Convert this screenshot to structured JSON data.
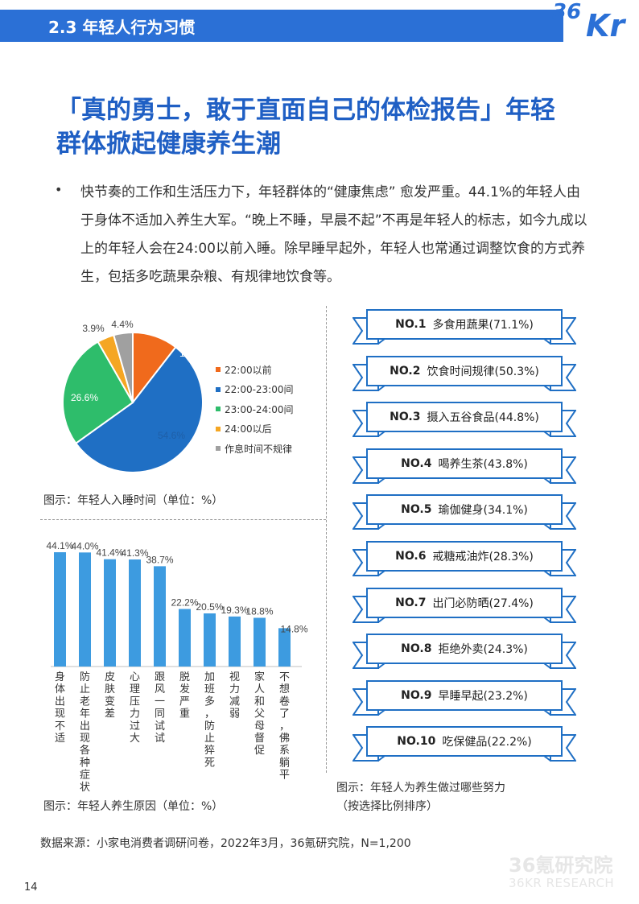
{
  "section": {
    "title": "2.3 年轻人行为习惯"
  },
  "logo": {
    "part1": "36",
    "part2": "Kr"
  },
  "headline": {
    "line1": "「真的勇士，敢于直面自己的体检报告」年轻",
    "line2": "群体掀起健康养生潮"
  },
  "intro": {
    "bullet": "•",
    "text": "快节奏的工作和生活压力下，年轻群体的“健康焦虑” 愈发严重。44.1%的年轻人由于身体不适加入养生大军。“晚上不睡，早晨不起”不再是年轻人的标志，如今九成以上的年轻人会在24:00以前入睡。除早睡早起外，年轻人也常通过调整饮食的方式养生，包括多吃蔬果杂粮、有规律地饮食等。"
  },
  "captions": {
    "pie": "图示：年轻人入睡时间（单位：%）",
    "bar": "图示：年轻人养生原因（单位：%）",
    "rank_line1": "图示：年轻人为养生做过哪些努力",
    "rank_line2": "（按选择比例排序）"
  },
  "chart_data": [
    {
      "type": "pie",
      "slices": [
        {
          "label": "22:00以前",
          "value": 10.5,
          "value_label": "10.5%",
          "color": "#f06a1c"
        },
        {
          "label": "22:00-23:00间",
          "value": 54.6,
          "value_label": "54.6%",
          "color": "#1f6fc4"
        },
        {
          "label": "23:00-24:00间",
          "value": 26.6,
          "value_label": "26.6%",
          "color": "#2ebd6b"
        },
        {
          "label": "24:00以后",
          "value": 3.9,
          "value_label": "3.9%",
          "color": "#f5a623"
        },
        {
          "label": "作息时间不规律",
          "value": 4.4,
          "value_label": "4.4%",
          "color": "#a0a0a0"
        }
      ]
    },
    {
      "type": "bar",
      "categories": [
        "身体出现不适",
        "防止老年出现各种症状",
        "皮肤变差",
        "心理压力过大",
        "跟风一同试试",
        "脱发严重",
        "加班多，防止猝死",
        "视力减弱",
        "家人和父母督促",
        "不想卷了，佛系躺平"
      ],
      "values": [
        44.1,
        44.0,
        41.4,
        41.3,
        38.7,
        22.2,
        20.5,
        19.3,
        18.8,
        14.8
      ],
      "value_labels": [
        "44.1%",
        "44.0%",
        "41.4%",
        "41.3%",
        "38.7%",
        "22.2%",
        "20.5%",
        "19.3%",
        "18.8%",
        "14.8%"
      ],
      "color": "#3d9be0",
      "ylim": [
        0,
        44.1
      ]
    },
    {
      "type": "table",
      "rows": [
        {
          "rank": "NO.1",
          "label": "多食用蔬果(71.1%)",
          "value": 71.1
        },
        {
          "rank": "NO.2",
          "label": "饮食时间规律(50.3%)",
          "value": 50.3
        },
        {
          "rank": "NO.3",
          "label": "摄入五谷食品(44.8%)",
          "value": 44.8
        },
        {
          "rank": "NO.4",
          "label": "喝养生茶(43.8%)",
          "value": 43.8
        },
        {
          "rank": "NO.5",
          "label": "瑜伽健身(34.1%)",
          "value": 34.1
        },
        {
          "rank": "NO.6",
          "label": "戒糖戒油炸(28.3%)",
          "value": 28.3
        },
        {
          "rank": "NO.7",
          "label": "出门必防晒(27.4%)",
          "value": 27.4
        },
        {
          "rank": "NO.8",
          "label": "拒绝外卖(24.3%)",
          "value": 24.3
        },
        {
          "rank": "NO.9",
          "label": "早睡早起(23.2%)",
          "value": 23.2
        },
        {
          "rank": "NO.10",
          "label": "吃保健品(22.2%)",
          "value": 22.2
        }
      ]
    }
  ],
  "source": "数据来源：小家电消费者调研问卷，2022年3月，36氪研究院，N=1,200",
  "page_number": "14",
  "watermark": {
    "cn": "36氪研究院",
    "en": "36KR RESEARCH"
  }
}
